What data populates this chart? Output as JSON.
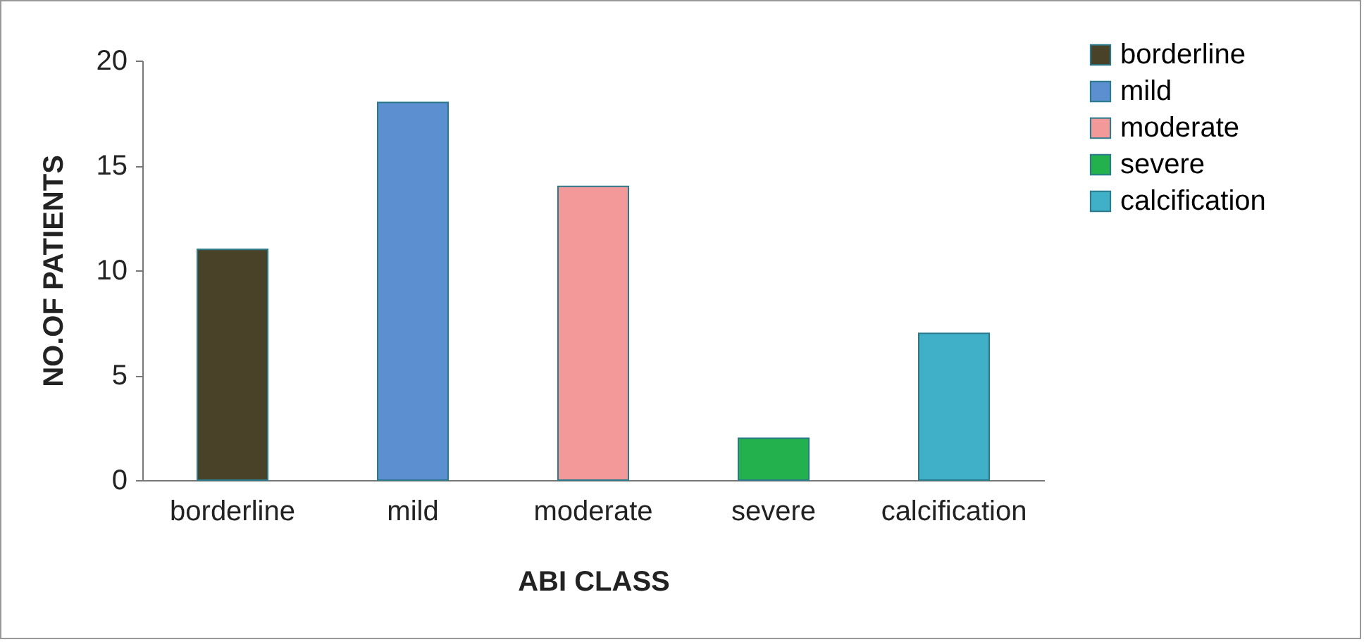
{
  "chart_data": {
    "type": "bar",
    "xlabel": "ABI CLASS",
    "ylabel": "NO.OF PATIENTS",
    "categories": [
      "borderline",
      "mild",
      "moderate",
      "severe",
      "calcification"
    ],
    "series": [
      {
        "name": "borderline",
        "color": "#4a4228",
        "values": [
          11,
          null,
          null,
          null,
          null
        ]
      },
      {
        "name": "mild",
        "color": "#5b8fcf",
        "values": [
          null,
          18,
          null,
          null,
          null
        ]
      },
      {
        "name": "moderate",
        "color": "#f4999a",
        "values": [
          null,
          null,
          14,
          null,
          null
        ]
      },
      {
        "name": "severe",
        "color": "#22b14c",
        "values": [
          null,
          null,
          null,
          2,
          null
        ]
      },
      {
        "name": "calcification",
        "color": "#3fb0c8",
        "values": [
          null,
          null,
          null,
          null,
          7
        ]
      }
    ],
    "stacked": true,
    "ylim": [
      0,
      20
    ],
    "yticks": [
      0,
      5,
      10,
      15,
      20
    ],
    "grid": false,
    "legend": "top right"
  }
}
